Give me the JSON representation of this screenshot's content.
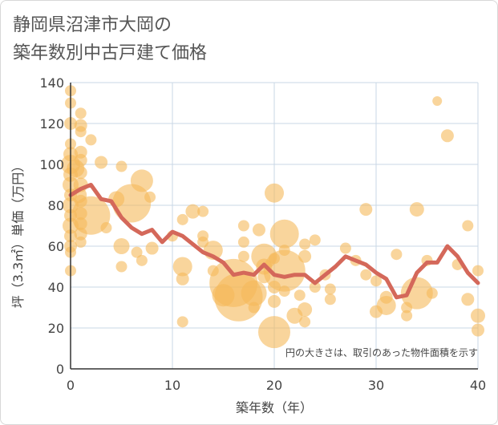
{
  "title_line1": "静岡県沼津市大岡の",
  "title_line2": "築年数別中古戸建て価格",
  "chart_data": {
    "type": "scatter",
    "title": "静岡県沼津市大岡の築年数別中古戸建て価格",
    "xlabel": "築年数（年）",
    "ylabel": "坪（3.3㎡）単価（万円）",
    "xlim": [
      0,
      40
    ],
    "ylim": [
      0,
      140
    ],
    "x_ticks": [
      0,
      10,
      20,
      30,
      40
    ],
    "y_ticks": [
      0,
      20,
      40,
      60,
      80,
      100,
      120,
      140
    ],
    "grid": true,
    "note": "円の大きさは、取引のあった物件面積を示す",
    "colors": {
      "bubble": "#f5b95a",
      "line": "#d4685a",
      "grid": "#c8d7e6",
      "axis": "#333333"
    },
    "bubbles": [
      {
        "x": 0,
        "y": 136,
        "s": 3
      },
      {
        "x": 0,
        "y": 130,
        "s": 3
      },
      {
        "x": 0,
        "y": 120,
        "s": 4
      },
      {
        "x": 0,
        "y": 110,
        "s": 3
      },
      {
        "x": 0,
        "y": 105,
        "s": 5
      },
      {
        "x": 0,
        "y": 100,
        "s": 8
      },
      {
        "x": 0,
        "y": 95,
        "s": 5
      },
      {
        "x": 0,
        "y": 90,
        "s": 6
      },
      {
        "x": 0,
        "y": 85,
        "s": 4
      },
      {
        "x": 0,
        "y": 80,
        "s": 6
      },
      {
        "x": 0,
        "y": 75,
        "s": 4
      },
      {
        "x": 0,
        "y": 70,
        "s": 6
      },
      {
        "x": 0,
        "y": 65,
        "s": 4
      },
      {
        "x": 0,
        "y": 60,
        "s": 4
      },
      {
        "x": 0,
        "y": 57,
        "s": 3
      },
      {
        "x": 0,
        "y": 48,
        "s": 3
      },
      {
        "x": 1,
        "y": 125,
        "s": 3
      },
      {
        "x": 1,
        "y": 119,
        "s": 4
      },
      {
        "x": 1,
        "y": 116,
        "s": 3
      },
      {
        "x": 1,
        "y": 106,
        "s": 4
      },
      {
        "x": 1,
        "y": 102,
        "s": 4
      },
      {
        "x": 1,
        "y": 96,
        "s": 4
      },
      {
        "x": 1,
        "y": 90,
        "s": 5
      },
      {
        "x": 1,
        "y": 82,
        "s": 4
      },
      {
        "x": 1,
        "y": 76,
        "s": 4
      },
      {
        "x": 1,
        "y": 71,
        "s": 4
      },
      {
        "x": 1,
        "y": 66,
        "s": 4
      },
      {
        "x": 1,
        "y": 62,
        "s": 3
      },
      {
        "x": 0.5,
        "y": 98,
        "s": 7
      },
      {
        "x": 0.8,
        "y": 85,
        "s": 6
      },
      {
        "x": 2,
        "y": 112,
        "s": 3
      },
      {
        "x": 2,
        "y": 75,
        "s": 20
      },
      {
        "x": 3,
        "y": 101,
        "s": 4
      },
      {
        "x": 3.5,
        "y": 69,
        "s": 3
      },
      {
        "x": 4.5,
        "y": 83,
        "s": 6
      },
      {
        "x": 5,
        "y": 99,
        "s": 3
      },
      {
        "x": 5,
        "y": 60,
        "s": 6
      },
      {
        "x": 5,
        "y": 50,
        "s": 3
      },
      {
        "x": 6,
        "y": 81,
        "s": 20
      },
      {
        "x": 6.5,
        "y": 57,
        "s": 3
      },
      {
        "x": 7,
        "y": 92,
        "s": 10
      },
      {
        "x": 7,
        "y": 53,
        "s": 3
      },
      {
        "x": 7.8,
        "y": 84,
        "s": 3
      },
      {
        "x": 8,
        "y": 59,
        "s": 4
      },
      {
        "x": 10,
        "y": 65,
        "s": 3
      },
      {
        "x": 11,
        "y": 73,
        "s": 3
      },
      {
        "x": 11,
        "y": 50,
        "s": 8
      },
      {
        "x": 11,
        "y": 44,
        "s": 4
      },
      {
        "x": 11,
        "y": 23,
        "s": 3
      },
      {
        "x": 12,
        "y": 77,
        "s": 5
      },
      {
        "x": 13,
        "y": 77,
        "s": 3
      },
      {
        "x": 13,
        "y": 65,
        "s": 3
      },
      {
        "x": 13,
        "y": 62,
        "s": 3
      },
      {
        "x": 14,
        "y": 58,
        "s": 8
      },
      {
        "x": 14,
        "y": 48,
        "s": 3
      },
      {
        "x": 15,
        "y": 36,
        "s": 10
      },
      {
        "x": 16,
        "y": 42,
        "s": 26
      },
      {
        "x": 16.5,
        "y": 35,
        "s": 26
      },
      {
        "x": 17,
        "y": 70,
        "s": 3
      },
      {
        "x": 17,
        "y": 62,
        "s": 3
      },
      {
        "x": 17,
        "y": 55,
        "s": 3
      },
      {
        "x": 18,
        "y": 37,
        "s": 12
      },
      {
        "x": 18,
        "y": 30,
        "s": 3
      },
      {
        "x": 18.5,
        "y": 68,
        "s": 4
      },
      {
        "x": 19,
        "y": 55,
        "s": 12
      },
      {
        "x": 19,
        "y": 50,
        "s": 6
      },
      {
        "x": 19,
        "y": 45,
        "s": 4
      },
      {
        "x": 20,
        "y": 86,
        "s": 8
      },
      {
        "x": 20,
        "y": 54,
        "s": 3
      },
      {
        "x": 20,
        "y": 40,
        "s": 4
      },
      {
        "x": 20,
        "y": 33,
        "s": 4
      },
      {
        "x": 20,
        "y": 18,
        "s": 16
      },
      {
        "x": 21,
        "y": 66,
        "s": 14
      },
      {
        "x": 21,
        "y": 58,
        "s": 3
      },
      {
        "x": 21,
        "y": 48,
        "s": 22
      },
      {
        "x": 21,
        "y": 38,
        "s": 3
      },
      {
        "x": 22,
        "y": 26,
        "s": 6
      },
      {
        "x": 22.5,
        "y": 36,
        "s": 3
      },
      {
        "x": 23,
        "y": 61,
        "s": 3
      },
      {
        "x": 23,
        "y": 55,
        "s": 4
      },
      {
        "x": 23,
        "y": 29,
        "s": 5
      },
      {
        "x": 23,
        "y": 23,
        "s": 3
      },
      {
        "x": 24,
        "y": 63,
        "s": 3
      },
      {
        "x": 24,
        "y": 40,
        "s": 3
      },
      {
        "x": 25,
        "y": 46,
        "s": 3
      },
      {
        "x": 25.5,
        "y": 34,
        "s": 3
      },
      {
        "x": 25.5,
        "y": 39,
        "s": 3
      },
      {
        "x": 27,
        "y": 59,
        "s": 3
      },
      {
        "x": 28,
        "y": 53,
        "s": 3
      },
      {
        "x": 29,
        "y": 78,
        "s": 4
      },
      {
        "x": 29,
        "y": 46,
        "s": 3
      },
      {
        "x": 30,
        "y": 43,
        "s": 3
      },
      {
        "x": 30,
        "y": 28,
        "s": 4
      },
      {
        "x": 31,
        "y": 31,
        "s": 8
      },
      {
        "x": 31,
        "y": 35,
        "s": 4
      },
      {
        "x": 32,
        "y": 56,
        "s": 3
      },
      {
        "x": 33,
        "y": 30,
        "s": 3
      },
      {
        "x": 33,
        "y": 26,
        "s": 3
      },
      {
        "x": 34,
        "y": 78,
        "s": 5
      },
      {
        "x": 34,
        "y": 37,
        "s": 16
      },
      {
        "x": 35,
        "y": 53,
        "s": 3
      },
      {
        "x": 35.5,
        "y": 37,
        "s": 3
      },
      {
        "x": 36,
        "y": 131,
        "s": 2
      },
      {
        "x": 37,
        "y": 114,
        "s": 4
      },
      {
        "x": 38,
        "y": 51,
        "s": 3
      },
      {
        "x": 39,
        "y": 70,
        "s": 3
      },
      {
        "x": 39,
        "y": 34,
        "s": 4
      },
      {
        "x": 40,
        "y": 48,
        "s": 3
      },
      {
        "x": 40,
        "y": 26,
        "s": 5
      },
      {
        "x": 40,
        "y": 19,
        "s": 4
      }
    ],
    "trend_line": {
      "x": [
        0,
        1,
        2,
        3,
        4,
        5,
        6,
        7,
        8,
        9,
        10,
        11,
        12,
        13,
        14,
        15,
        16,
        17,
        18,
        19,
        20,
        21,
        22,
        23,
        24,
        25,
        26,
        27,
        28,
        29,
        30,
        31,
        32,
        33,
        34,
        35,
        36,
        37,
        38,
        39,
        40
      ],
      "y": [
        85,
        88,
        90,
        83,
        82,
        74,
        69,
        66,
        68,
        62,
        67,
        65,
        61,
        57,
        55,
        52,
        46,
        47,
        46,
        51,
        46,
        45,
        46,
        46,
        42,
        46,
        50,
        55,
        53,
        51,
        47,
        44,
        35,
        36,
        47,
        52,
        52,
        60,
        55,
        47,
        42
      ]
    }
  }
}
